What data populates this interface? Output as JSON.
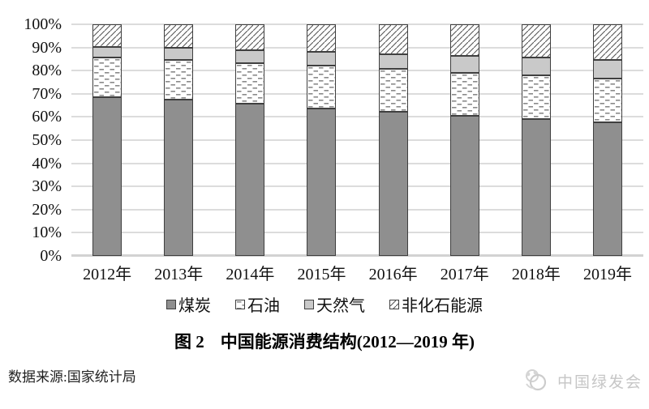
{
  "chart_data": {
    "type": "bar",
    "stacked": true,
    "unit": "%",
    "categories": [
      "2012年",
      "2013年",
      "2014年",
      "2015年",
      "2016年",
      "2017年",
      "2018年",
      "2019年"
    ],
    "series": [
      {
        "name": "煤炭",
        "style": "solid-coal",
        "values": [
          68.5,
          67.4,
          65.8,
          63.8,
          62.2,
          60.4,
          59.0,
          57.7
        ]
      },
      {
        "name": "石油",
        "style": "dot-dash",
        "values": [
          17.0,
          17.1,
          17.3,
          18.4,
          18.7,
          18.8,
          18.9,
          19.0
        ]
      },
      {
        "name": "天然气",
        "style": "solid-gas",
        "values": [
          4.8,
          5.3,
          5.6,
          5.8,
          6.1,
          7.0,
          7.6,
          8.0
        ]
      },
      {
        "name": "非化石能源",
        "style": "hatch",
        "values": [
          9.7,
          10.2,
          11.3,
          12.0,
          13.0,
          13.8,
          14.5,
          15.3
        ]
      }
    ],
    "ylim": [
      0,
      100
    ],
    "ytick_step": 10,
    "ytick_suffix": "%",
    "grid": true,
    "legend_position": "bottom"
  },
  "colors": {
    "coal_fill": "#8f8f8f",
    "gas_fill": "#c9c9c9",
    "oil_dash_ink": "#8a8a8a",
    "hatch_ink": "#565656",
    "segment_border": "#3f3f3f",
    "gridline": "#dcdcdc",
    "baseline": "#d2d2d2",
    "text": "#111111",
    "watermark": "#c6c6c6"
  },
  "caption": {
    "figure_label": "图 2",
    "title": "中国能源消费结构(2012—2019 年)"
  },
  "source": {
    "text": "数据来源:国家统计局"
  },
  "watermark": {
    "text": "中国绿发会"
  }
}
